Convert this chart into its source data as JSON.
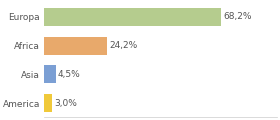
{
  "categories": [
    "America",
    "Asia",
    "Africa",
    "Europa"
  ],
  "values": [
    3.0,
    4.5,
    24.2,
    68.2
  ],
  "labels": [
    "3,0%",
    "4,5%",
    "24,2%",
    "68,2%"
  ],
  "colors": [
    "#f0c93a",
    "#7b9fd4",
    "#e8a96b",
    "#b5cc8e"
  ],
  "background_color": "#ffffff",
  "plot_bg_color": "#ffffff",
  "xlim": [
    0,
    90
  ],
  "bar_height": 0.62,
  "label_fontsize": 6.5,
  "tick_fontsize": 6.5,
  "grid_color": "#dddddd",
  "spine_color": "#cccccc",
  "text_color": "#555555"
}
